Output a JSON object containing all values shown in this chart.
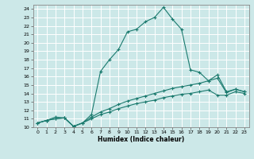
{
  "xlabel": "Humidex (Indice chaleur)",
  "background_color": "#cce8e8",
  "grid_color": "#ffffff",
  "line_color": "#1a7a6e",
  "xlim": [
    -0.5,
    23.5
  ],
  "ylim": [
    10,
    24.5
  ],
  "xticks": [
    0,
    1,
    2,
    3,
    4,
    5,
    6,
    7,
    8,
    9,
    10,
    11,
    12,
    13,
    14,
    15,
    16,
    17,
    18,
    19,
    20,
    21,
    22,
    23
  ],
  "yticks": [
    10,
    11,
    12,
    13,
    14,
    15,
    16,
    17,
    18,
    19,
    20,
    21,
    22,
    23,
    24
  ],
  "series": [
    {
      "x": [
        0,
        1,
        2,
        3,
        4,
        5,
        6,
        7,
        8,
        9,
        10,
        11,
        12,
        13,
        14,
        15,
        16,
        17,
        18,
        19,
        20,
        21,
        22,
        23
      ],
      "y": [
        10.5,
        10.8,
        11.2,
        11.1,
        10.1,
        10.5,
        11.5,
        16.6,
        18.0,
        19.2,
        21.3,
        21.6,
        22.5,
        23.0,
        24.2,
        22.8,
        21.6,
        16.8,
        16.5,
        15.5,
        16.2,
        14.2,
        14.5,
        14.2
      ]
    },
    {
      "x": [
        0,
        1,
        2,
        3,
        4,
        5,
        6,
        7,
        8,
        9,
        10,
        11,
        12,
        13,
        14,
        15,
        16,
        17,
        18,
        19,
        20,
        21,
        22,
        23
      ],
      "y": [
        10.5,
        10.8,
        11.0,
        11.1,
        10.1,
        10.5,
        11.2,
        11.8,
        12.2,
        12.7,
        13.1,
        13.4,
        13.7,
        14.0,
        14.3,
        14.6,
        14.8,
        15.0,
        15.2,
        15.5,
        15.8,
        14.1,
        14.5,
        14.2
      ]
    },
    {
      "x": [
        0,
        1,
        2,
        3,
        4,
        5,
        6,
        7,
        8,
        9,
        10,
        11,
        12,
        13,
        14,
        15,
        16,
        17,
        18,
        19,
        20,
        21,
        22,
        23
      ],
      "y": [
        10.5,
        10.8,
        11.0,
        11.1,
        10.1,
        10.5,
        11.0,
        11.5,
        11.8,
        12.2,
        12.5,
        12.8,
        13.0,
        13.2,
        13.5,
        13.7,
        13.9,
        14.0,
        14.2,
        14.4,
        13.8,
        13.8,
        14.2,
        14.0
      ]
    }
  ]
}
